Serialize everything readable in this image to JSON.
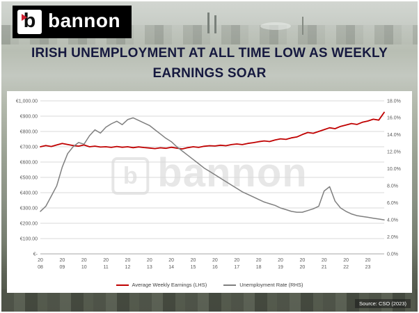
{
  "logo": {
    "text": "bannon",
    "icon_letter": "b"
  },
  "title": {
    "line1": "IRISH UNEMPLOYMENT AT ALL TIME LOW AS WEEKLY",
    "line2": "EARNINGS SOAR"
  },
  "watermark": {
    "text": "bannon",
    "icon_letter": "b"
  },
  "source_text": "Source: CSO (2023)",
  "colors": {
    "earnings_line": "#c00000",
    "unemployment_line": "#7f7f7f",
    "gridline": "#d9d9d9",
    "axis_line": "#a6a6a6",
    "axis_text": "#595959",
    "title_text": "#16193f",
    "logo_accent": "#cf2030"
  },
  "chart_data": {
    "type": "line",
    "title": "",
    "legend_position": "bottom",
    "gridlines": "horizontal",
    "points_per_year": 4,
    "x_years": [
      "2008",
      "2009",
      "2010",
      "2011",
      "2012",
      "2013",
      "2014",
      "2015",
      "2016",
      "2017",
      "2018",
      "2019",
      "2020",
      "2021",
      "2022",
      "2023"
    ],
    "left_axis": {
      "min": 0,
      "max": 1000,
      "step": 100,
      "labels_top_to_bottom": [
        "€1,000.00",
        "€900.00",
        "€800.00",
        "€700.00",
        "€600.00",
        "€500.00",
        "€400.00",
        "€300.00",
        "€200.00",
        "€100.00",
        "€-"
      ]
    },
    "right_axis": {
      "min": 0,
      "max": 18,
      "step": 2,
      "labels_top_to_bottom": [
        "18.0%",
        "16.0%",
        "14.0%",
        "12.0%",
        "10.0%",
        "8.0%",
        "6.0%",
        "4.0%",
        "2.0%",
        "0.0%"
      ]
    },
    "series": [
      {
        "name": "Average Weekly Earnings (LHS)",
        "axis": "left",
        "color": "#c00000",
        "unit": "EUR per week",
        "values": [
          700,
          708,
          702,
          712,
          722,
          715,
          708,
          704,
          712,
          700,
          704,
          698,
          700,
          696,
          702,
          697,
          700,
          694,
          699,
          695,
          692,
          688,
          693,
          690,
          697,
          691,
          686,
          694,
          700,
          696,
          703,
          707,
          705,
          710,
          707,
          714,
          718,
          714,
          722,
          727,
          733,
          738,
          734,
          744,
          752,
          748,
          758,
          764,
          780,
          793,
          788,
          800,
          812,
          824,
          818,
          833,
          842,
          852,
          846,
          860,
          868,
          880,
          874,
          925
        ]
      },
      {
        "name": "Unemployment Rate (RHS)",
        "axis": "right",
        "color": "#7f7f7f",
        "unit": "percent",
        "values": [
          5.0,
          5.6,
          6.8,
          8.0,
          10.2,
          11.8,
          12.6,
          13.1,
          12.9,
          13.9,
          14.6,
          14.2,
          14.9,
          15.3,
          15.6,
          15.2,
          15.8,
          16.0,
          15.7,
          15.4,
          15.1,
          14.6,
          14.1,
          13.6,
          13.2,
          12.6,
          12.1,
          11.6,
          11.1,
          10.6,
          10.1,
          9.7,
          9.3,
          8.9,
          8.5,
          8.1,
          7.7,
          7.3,
          7.0,
          6.7,
          6.4,
          6.1,
          5.9,
          5.7,
          5.4,
          5.2,
          5.0,
          4.9,
          4.9,
          5.1,
          5.3,
          5.6,
          7.4,
          7.9,
          6.2,
          5.4,
          5.0,
          4.7,
          4.5,
          4.4,
          4.3,
          4.2,
          4.1,
          4.0
        ]
      }
    ]
  }
}
